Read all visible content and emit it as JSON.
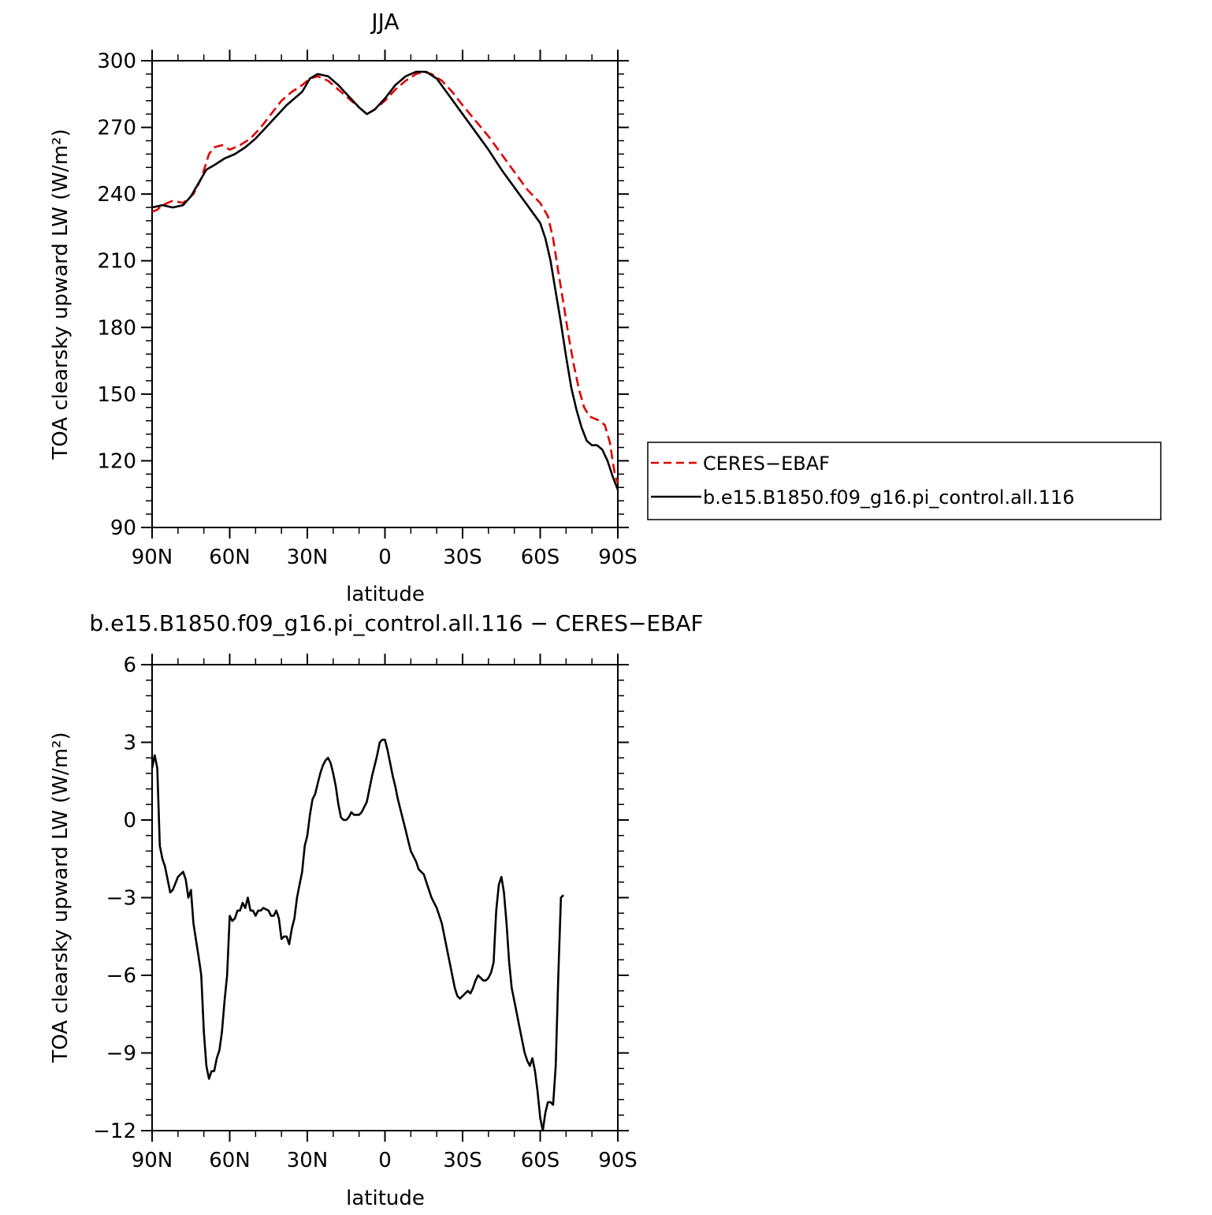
{
  "chart_data": [
    {
      "type": "line",
      "title": "JJA",
      "xlabel": "latitude",
      "ylabel": "TOA clearsky upward LW (W/m²)",
      "xlim": [
        90,
        -90
      ],
      "ylim": [
        90,
        300
      ],
      "xticks": [
        90,
        60,
        30,
        0,
        -30,
        -60,
        -90
      ],
      "xtick_labels": [
        "90N",
        "60N",
        "30N",
        "0",
        "30S",
        "60S",
        "90S"
      ],
      "yticks": [
        90,
        120,
        150,
        180,
        210,
        240,
        270,
        300
      ],
      "ytick_labels": [
        "90",
        "120",
        "150",
        "180",
        "210",
        "240",
        "270",
        "300"
      ],
      "legend_position": "right, outside plot",
      "series": [
        {
          "name": "CERES−EBAF",
          "color": "#e00000",
          "dash": "dashed",
          "points": [
            [
              90,
              232
            ],
            [
              88,
              233
            ],
            [
              86,
              235
            ],
            [
              82,
              237
            ],
            [
              78,
              236
            ],
            [
              74,
              240
            ],
            [
              71,
              247
            ],
            [
              68,
              258
            ],
            [
              66,
              261
            ],
            [
              63,
              262
            ],
            [
              60,
              260
            ],
            [
              56,
              262
            ],
            [
              52,
              265
            ],
            [
              48,
              270
            ],
            [
              44,
              276
            ],
            [
              40,
              282
            ],
            [
              36,
              286
            ],
            [
              32,
              289
            ],
            [
              29,
              292
            ],
            [
              26,
              293
            ],
            [
              22,
              291
            ],
            [
              18,
              287
            ],
            [
              14,
              283
            ],
            [
              10,
              279
            ],
            [
              7,
              276
            ],
            [
              4,
              278
            ],
            [
              0,
              282
            ],
            [
              -4,
              287
            ],
            [
              -8,
              291
            ],
            [
              -12,
              294
            ],
            [
              -15,
              295
            ],
            [
              -18,
              294
            ],
            [
              -22,
              291
            ],
            [
              -26,
              286
            ],
            [
              -30,
              280
            ],
            [
              -35,
              273
            ],
            [
              -40,
              266
            ],
            [
              -45,
              258
            ],
            [
              -50,
              250
            ],
            [
              -55,
              242
            ],
            [
              -60,
              236
            ],
            [
              -63,
              230
            ],
            [
              -65,
              220
            ],
            [
              -67,
              205
            ],
            [
              -69,
              191
            ],
            [
              -71,
              176
            ],
            [
              -73,
              163
            ],
            [
              -75,
              152
            ],
            [
              -77,
              144
            ],
            [
              -79,
              140
            ],
            [
              -81,
              139
            ],
            [
              -83,
              138
            ],
            [
              -85,
              136
            ],
            [
              -87,
              128
            ],
            [
              -88,
              120
            ],
            [
              -89,
              113
            ],
            [
              -90,
              110
            ]
          ]
        },
        {
          "name": "b.e15.B1850.f09_g16.pi_control.all.116",
          "color": "#000000",
          "dash": "solid",
          "points": [
            [
              90,
              234
            ],
            [
              86,
              235
            ],
            [
              82,
              234
            ],
            [
              78,
              235
            ],
            [
              75,
              239
            ],
            [
              72,
              245
            ],
            [
              69,
              251
            ],
            [
              66,
              253
            ],
            [
              62,
              256
            ],
            [
              58,
              258
            ],
            [
              54,
              261
            ],
            [
              50,
              265
            ],
            [
              46,
              270
            ],
            [
              42,
              275
            ],
            [
              38,
              280
            ],
            [
              35,
              283
            ],
            [
              32,
              286
            ],
            [
              29,
              292
            ],
            [
              26,
              294
            ],
            [
              22,
              293
            ],
            [
              18,
              289
            ],
            [
              14,
              284
            ],
            [
              10,
              279
            ],
            [
              7,
              276
            ],
            [
              4,
              278
            ],
            [
              0,
              283
            ],
            [
              -4,
              289
            ],
            [
              -8,
              293
            ],
            [
              -12,
              295
            ],
            [
              -16,
              295
            ],
            [
              -20,
              292
            ],
            [
              -25,
              284
            ],
            [
              -30,
              276
            ],
            [
              -35,
              268
            ],
            [
              -40,
              260
            ],
            [
              -45,
              251
            ],
            [
              -50,
              243
            ],
            [
              -55,
              235
            ],
            [
              -60,
              227
            ],
            [
              -62,
              220
            ],
            [
              -64,
              210
            ],
            [
              -66,
              196
            ],
            [
              -68,
              182
            ],
            [
              -70,
              167
            ],
            [
              -72,
              153
            ],
            [
              -74,
              143
            ],
            [
              -76,
              135
            ],
            [
              -78,
              129
            ],
            [
              -80,
              127
            ],
            [
              -82,
              127
            ],
            [
              -84,
              125
            ],
            [
              -86,
              120
            ],
            [
              -88,
              113
            ],
            [
              -90,
              107
            ]
          ]
        }
      ]
    },
    {
      "type": "line",
      "title": "b.e15.B1850.f09_g16.pi_control.all.116 − CERES−EBAF",
      "xlabel": "latitude",
      "ylabel": "TOA clearsky upward LW (W/m²)",
      "xlim": [
        90,
        -90
      ],
      "ylim": [
        -12,
        6
      ],
      "xticks": [
        90,
        60,
        30,
        0,
        -30,
        -60,
        -90
      ],
      "xtick_labels": [
        "90N",
        "60N",
        "30N",
        "0",
        "30S",
        "60S",
        "90S"
      ],
      "yticks": [
        -12,
        -9,
        -6,
        -3,
        0,
        3,
        6
      ],
      "ytick_labels": [
        "−12",
        "−9",
        "−6",
        "−3",
        "0",
        "3",
        "6"
      ],
      "series": [
        {
          "color": "#000000",
          "dash": "solid",
          "points": [
            [
              90,
              2.0
            ],
            [
              89,
              2.5
            ],
            [
              88,
              2.0
            ],
            [
              87,
              -1.0
            ],
            [
              86,
              -1.5
            ],
            [
              85,
              -1.8
            ],
            [
              83,
              -2.8
            ],
            [
              82,
              -2.7
            ],
            [
              80,
              -2.2
            ],
            [
              78,
              -2.0
            ],
            [
              77,
              -2.3
            ],
            [
              76,
              -3.0
            ],
            [
              75,
              -2.7
            ],
            [
              74,
              -4.0
            ],
            [
              72,
              -5.3
            ],
            [
              71,
              -6.0
            ],
            [
              70,
              -8.2
            ],
            [
              69,
              -9.5
            ],
            [
              68,
              -10.0
            ],
            [
              67,
              -9.7
            ],
            [
              66,
              -9.7
            ],
            [
              65,
              -9.2
            ],
            [
              64,
              -8.9
            ],
            [
              63,
              -8.2
            ],
            [
              62,
              -7.0
            ],
            [
              61,
              -6.0
            ],
            [
              60,
              -3.7
            ],
            [
              59,
              -3.9
            ],
            [
              58,
              -3.8
            ],
            [
              57,
              -3.5
            ],
            [
              56,
              -3.5
            ],
            [
              55,
              -3.2
            ],
            [
              54,
              -3.4
            ],
            [
              53,
              -3.0
            ],
            [
              52,
              -3.5
            ],
            [
              51,
              -3.5
            ],
            [
              50,
              -3.7
            ],
            [
              49,
              -3.5
            ],
            [
              48,
              -3.5
            ],
            [
              47,
              -3.4
            ],
            [
              45,
              -3.5
            ],
            [
              44,
              -3.7
            ],
            [
              43,
              -3.7
            ],
            [
              42,
              -3.5
            ],
            [
              41,
              -3.8
            ],
            [
              40,
              -4.6
            ],
            [
              39,
              -4.5
            ],
            [
              38,
              -4.5
            ],
            [
              37,
              -4.8
            ],
            [
              36,
              -4.2
            ],
            [
              35,
              -3.8
            ],
            [
              34,
              -3.0
            ],
            [
              33,
              -2.5
            ],
            [
              32,
              -2.0
            ],
            [
              31,
              -1.0
            ],
            [
              30,
              -0.6
            ],
            [
              29,
              0.2
            ],
            [
              28,
              0.8
            ],
            [
              27,
              1.0
            ],
            [
              26,
              1.4
            ],
            [
              25,
              1.8
            ],
            [
              24,
              2.1
            ],
            [
              23,
              2.3
            ],
            [
              22,
              2.4
            ],
            [
              21,
              2.2
            ],
            [
              20,
              1.8
            ],
            [
              19,
              1.3
            ],
            [
              18,
              0.6
            ],
            [
              17,
              0.1
            ],
            [
              16,
              0.0
            ],
            [
              15,
              0.0
            ],
            [
              14,
              0.1
            ],
            [
              13,
              0.3
            ],
            [
              12,
              0.2
            ],
            [
              11,
              0.2
            ],
            [
              10,
              0.2
            ],
            [
              9,
              0.3
            ],
            [
              8,
              0.5
            ],
            [
              7,
              0.7
            ],
            [
              6,
              1.2
            ],
            [
              5,
              1.7
            ],
            [
              4,
              2.1
            ],
            [
              3,
              2.5
            ],
            [
              2,
              3.0
            ],
            [
              1,
              3.1
            ],
            [
              0,
              3.1
            ],
            [
              -1,
              2.7
            ],
            [
              -2,
              2.2
            ],
            [
              -3,
              1.7
            ],
            [
              -4,
              1.3
            ],
            [
              -5,
              0.8
            ],
            [
              -6,
              0.4
            ],
            [
              -7,
              0.0
            ],
            [
              -8,
              -0.4
            ],
            [
              -9,
              -0.8
            ],
            [
              -10,
              -1.2
            ],
            [
              -11,
              -1.4
            ],
            [
              -12,
              -1.6
            ],
            [
              -13,
              -1.9
            ],
            [
              -14,
              -2.0
            ],
            [
              -15,
              -2.1
            ],
            [
              -16,
              -2.4
            ],
            [
              -17,
              -2.7
            ],
            [
              -18,
              -3.0
            ],
            [
              -19,
              -3.2
            ],
            [
              -20,
              -3.4
            ],
            [
              -21,
              -3.7
            ],
            [
              -22,
              -4.0
            ],
            [
              -23,
              -4.5
            ],
            [
              -24,
              -5.0
            ],
            [
              -25,
              -5.5
            ],
            [
              -26,
              -6.0
            ],
            [
              -27,
              -6.5
            ],
            [
              -28,
              -6.8
            ],
            [
              -29,
              -6.9
            ],
            [
              -30,
              -6.8
            ],
            [
              -31,
              -6.7
            ],
            [
              -32,
              -6.6
            ],
            [
              -33,
              -6.7
            ],
            [
              -34,
              -6.5
            ],
            [
              -35,
              -6.2
            ],
            [
              -36,
              -6.0
            ],
            [
              -37,
              -6.1
            ],
            [
              -38,
              -6.2
            ],
            [
              -39,
              -6.2
            ],
            [
              -40,
              -6.1
            ],
            [
              -41,
              -5.9
            ],
            [
              -42,
              -5.5
            ],
            [
              -42.5,
              -4.5
            ],
            [
              -43,
              -3.5
            ],
            [
              -44,
              -2.5
            ],
            [
              -45,
              -2.2
            ],
            [
              -46,
              -2.8
            ],
            [
              -47,
              -4.0
            ],
            [
              -48,
              -5.5
            ],
            [
              -49,
              -6.5
            ],
            [
              -50,
              -7.0
            ],
            [
              -51,
              -7.5
            ],
            [
              -52,
              -8.0
            ],
            [
              -53,
              -8.5
            ],
            [
              -54,
              -9.0
            ],
            [
              -55,
              -9.3
            ],
            [
              -56,
              -9.5
            ],
            [
              -57,
              -9.2
            ],
            [
              -58,
              -9.7
            ],
            [
              -59,
              -10.5
            ],
            [
              -60,
              -11.5
            ],
            [
              -61,
              -12.0
            ],
            [
              -62,
              -11.3
            ],
            [
              -63,
              -10.9
            ],
            [
              -64,
              -10.9
            ],
            [
              -65,
              -11.0
            ],
            [
              -66,
              -9.5
            ],
            [
              -67,
              -6.0
            ],
            [
              -68,
              -3.0
            ],
            [
              -69,
              -2.9
            ]
          ]
        }
      ]
    }
  ]
}
